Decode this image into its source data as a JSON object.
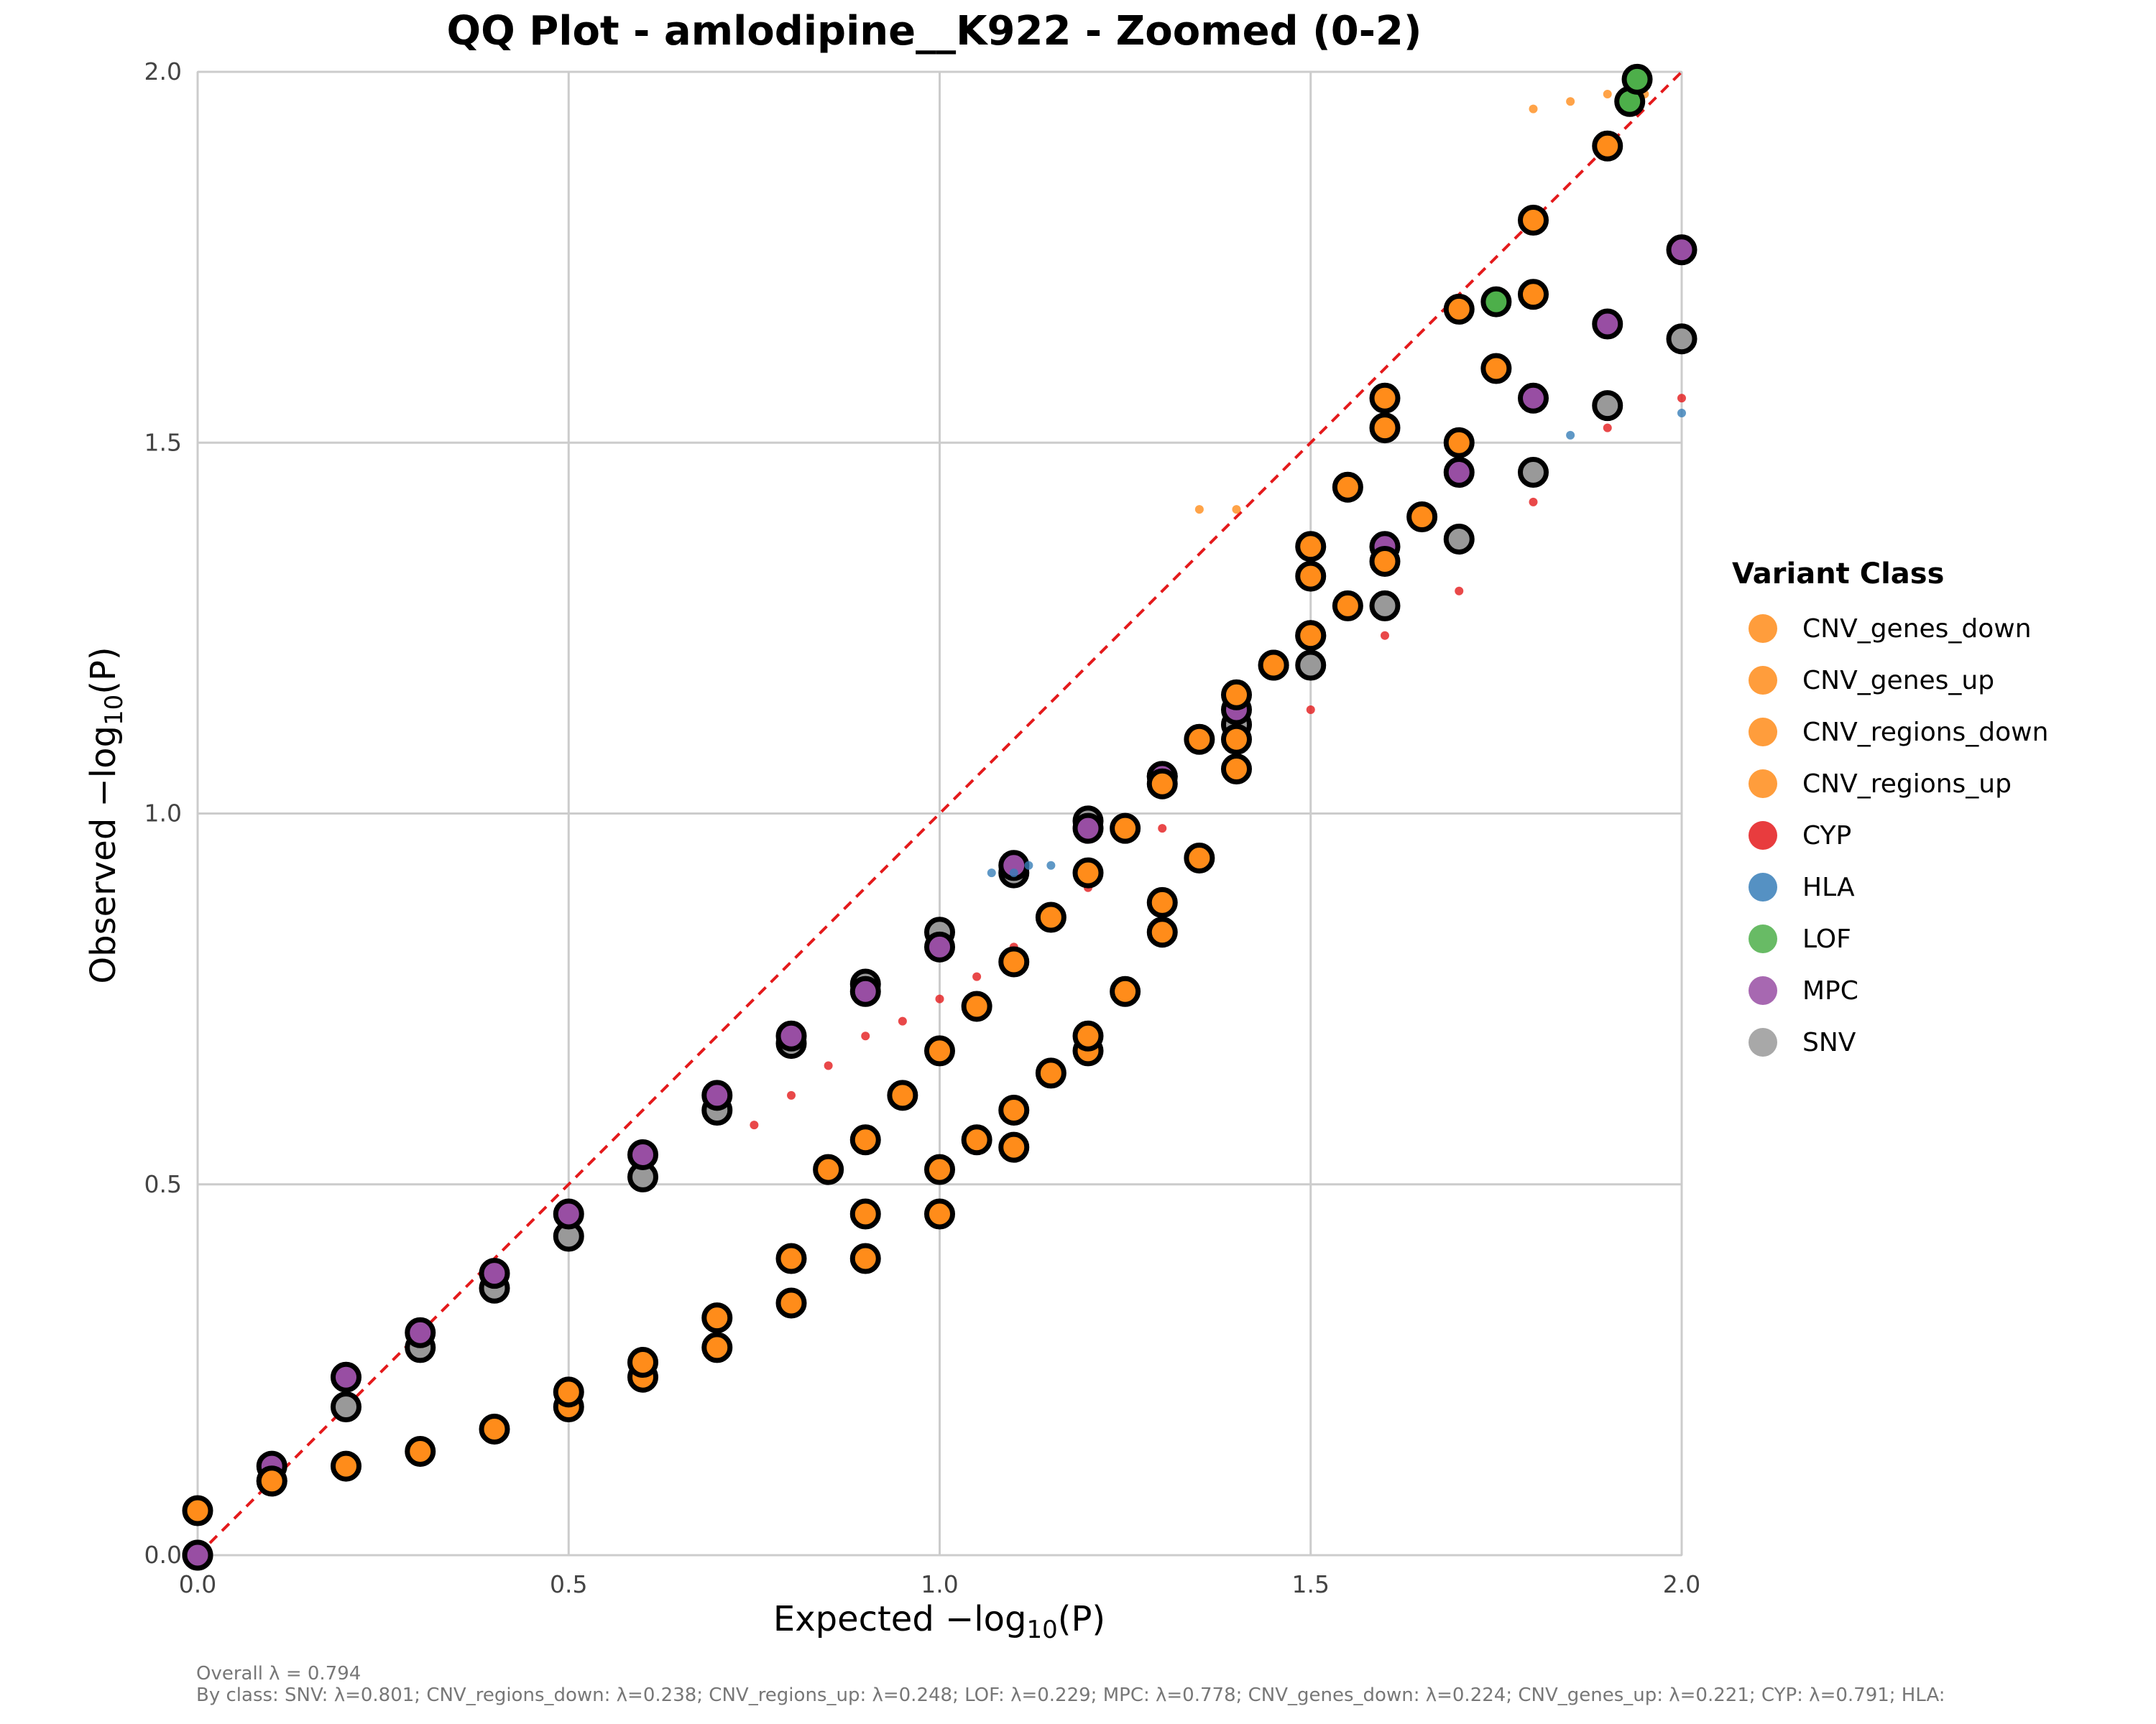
{
  "chart_data": {
    "type": "scatter",
    "title": "QQ Plot - amlodipine__K922 - Zoomed (0-2)",
    "xlabel": "Expected -log10(P)",
    "ylabel": "Observed -log10(P)",
    "xlim": [
      0,
      2
    ],
    "ylim": [
      0,
      2
    ],
    "x_ticks": [
      "0.0",
      "0.5",
      "1.0",
      "1.5",
      "2.0"
    ],
    "y_ticks": [
      "0.0",
      "0.5",
      "1.0",
      "1.5",
      "2.0"
    ],
    "grid": true,
    "reference_line": {
      "style": "dashed",
      "color": "#e41a1c",
      "from": [
        0,
        0
      ],
      "to": [
        2,
        2
      ]
    },
    "legend": {
      "title": "Variant Class",
      "placement": "right",
      "entries": [
        {
          "label": "CNV_genes_down",
          "color": "#ff8c1a"
        },
        {
          "label": "CNV_genes_up",
          "color": "#ff8c1a"
        },
        {
          "label": "CNV_regions_down",
          "color": "#ff8c1a"
        },
        {
          "label": "CNV_regions_up",
          "color": "#ff8c1a"
        },
        {
          "label": "CYP",
          "color": "#e41a1c"
        },
        {
          "label": "HLA",
          "color": "#377eb8"
        },
        {
          "label": "LOF",
          "color": "#4daf4a"
        },
        {
          "label": "MPC",
          "color": "#984ea3"
        },
        {
          "label": "SNV",
          "color": "#999999"
        }
      ]
    },
    "series": [
      {
        "class": "SNV",
        "color": "#999999",
        "highlighted": true,
        "x": [
          0.0,
          0.1,
          0.2,
          0.3,
          0.4,
          0.5,
          0.6,
          0.7,
          0.8,
          0.9,
          1.0,
          1.1,
          1.2,
          1.3,
          1.4,
          1.5,
          1.6,
          1.7,
          1.8,
          1.9,
          2.0
        ],
        "y": [
          0.0,
          0.1,
          0.2,
          0.28,
          0.36,
          0.43,
          0.51,
          0.6,
          0.69,
          0.77,
          0.84,
          0.92,
          0.99,
          1.05,
          1.12,
          1.2,
          1.28,
          1.37,
          1.46,
          1.55,
          1.64
        ]
      },
      {
        "class": "MPC",
        "color": "#984ea3",
        "highlighted": true,
        "x": [
          0.0,
          0.1,
          0.2,
          0.3,
          0.4,
          0.5,
          0.6,
          0.7,
          0.8,
          0.9,
          1.0,
          1.1,
          1.2,
          1.3,
          1.4,
          1.5,
          1.6,
          1.7,
          1.8,
          1.9,
          2.0
        ],
        "y": [
          0.0,
          0.12,
          0.24,
          0.3,
          0.38,
          0.46,
          0.54,
          0.62,
          0.7,
          0.76,
          0.82,
          0.93,
          0.98,
          1.05,
          1.14,
          1.24,
          1.36,
          1.46,
          1.56,
          1.66,
          1.76
        ]
      },
      {
        "class": "CYP",
        "color": "#e41a1c",
        "highlighted": false,
        "x": [
          0.75,
          0.8,
          0.85,
          0.9,
          0.95,
          1.0,
          1.05,
          1.1,
          1.15,
          1.2,
          1.3,
          1.4,
          1.5,
          1.6,
          1.7,
          1.8,
          1.9,
          2.0
        ],
        "y": [
          0.58,
          0.62,
          0.66,
          0.7,
          0.72,
          0.75,
          0.78,
          0.82,
          0.86,
          0.9,
          0.98,
          1.06,
          1.14,
          1.24,
          1.3,
          1.42,
          1.52,
          1.56
        ]
      },
      {
        "class": "CNV_regions_up",
        "color": "#ff8c1a",
        "highlighted": true,
        "x": [
          0.0,
          0.1,
          0.2,
          0.3,
          0.4,
          0.5,
          0.6,
          0.7,
          0.8,
          0.9,
          1.0,
          1.1,
          1.2,
          1.3,
          1.4,
          1.5,
          1.6,
          1.7,
          1.8,
          1.9
        ],
        "y": [
          0.06,
          0.1,
          0.12,
          0.14,
          0.17,
          0.2,
          0.24,
          0.28,
          0.34,
          0.4,
          0.46,
          0.55,
          0.68,
          0.88,
          1.1,
          1.36,
          1.56,
          1.68,
          1.8,
          1.9
        ]
      },
      {
        "class": "CNV_regions_down",
        "color": "#ff8c1a",
        "highlighted": true,
        "x": [
          0.5,
          0.6,
          0.7,
          0.8,
          0.9,
          1.0,
          1.05,
          1.1,
          1.15,
          1.2,
          1.25,
          1.3,
          1.35,
          1.4,
          1.45,
          1.5,
          1.55,
          1.6
        ],
        "y": [
          0.22,
          0.26,
          0.32,
          0.4,
          0.46,
          0.52,
          0.56,
          0.6,
          0.65,
          0.7,
          0.76,
          0.84,
          0.94,
          1.06,
          1.2,
          1.32,
          1.44,
          1.52
        ]
      },
      {
        "class": "CNV_genes_up",
        "color": "#ff8c1a",
        "highlighted": true,
        "x": [
          0.85,
          0.9,
          0.95,
          1.0,
          1.05,
          1.1,
          1.15,
          1.2,
          1.25,
          1.3,
          1.35,
          1.4,
          1.45,
          1.5,
          1.55,
          1.6,
          1.65,
          1.7,
          1.75,
          1.8
        ],
        "y": [
          0.52,
          0.56,
          0.62,
          0.68,
          0.74,
          0.8,
          0.86,
          0.92,
          0.98,
          1.04,
          1.1,
          1.16,
          1.2,
          1.24,
          1.28,
          1.34,
          1.4,
          1.5,
          1.6,
          1.7
        ]
      },
      {
        "class": "CNV_genes_down",
        "color": "#ff8c1a",
        "highlighted": false,
        "x": [
          1.35,
          1.4,
          1.8,
          1.85,
          1.9,
          1.95
        ],
        "y": [
          1.41,
          1.41,
          1.95,
          1.96,
          1.97,
          1.97
        ]
      },
      {
        "class": "HLA",
        "color": "#377eb8",
        "highlighted": false,
        "x": [
          1.07,
          1.1,
          1.12,
          1.15,
          1.85,
          2.0
        ],
        "y": [
          0.92,
          0.92,
          0.93,
          0.93,
          1.51,
          1.54
        ]
      },
      {
        "class": "LOF",
        "color": "#4daf4a",
        "highlighted": true,
        "x": [
          1.75,
          1.93,
          1.94
        ],
        "y": [
          1.69,
          1.96,
          1.99
        ]
      }
    ],
    "annotations": [
      "Overall λ = 0.794",
      "By class: SNV: λ=0.801; CNV_regions_down: λ=0.238; CNV_regions_up: λ=0.248; LOF: λ=0.229; MPC: λ=0.778; CNV_genes_down: λ=0.224; CNV_genes_up: λ=0.221; CYP: λ=0.791; HLA:"
    ]
  }
}
